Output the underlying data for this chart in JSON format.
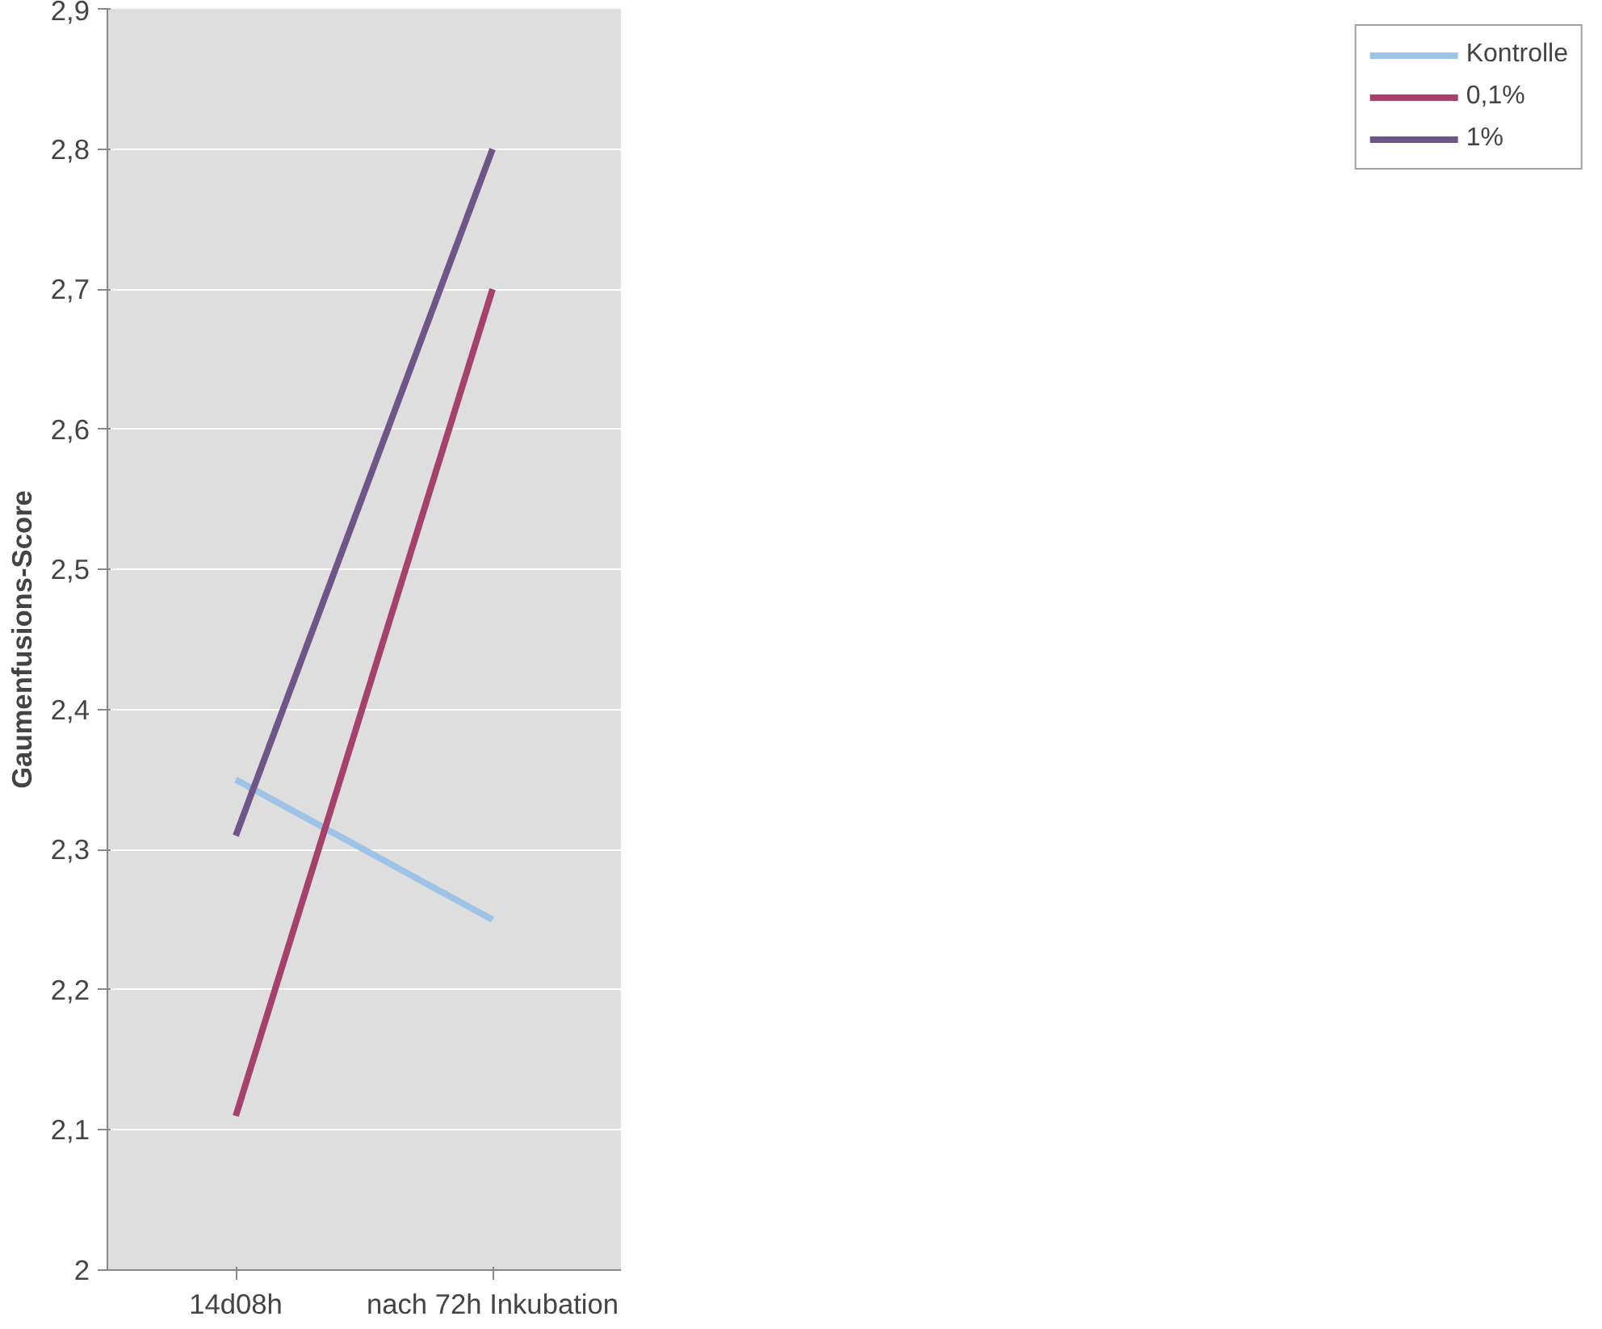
{
  "chart_data": {
    "type": "line",
    "ylabel": "Gaumenfusions-Score",
    "categories": [
      "14d08h",
      "nach 72h Inkubation"
    ],
    "series": [
      {
        "name": "Kontrolle",
        "color": "#9dc3e6",
        "values": [
          2.35,
          2.25
        ]
      },
      {
        "name": "0,1%",
        "color": "#a5426b",
        "values": [
          2.11,
          2.7
        ]
      },
      {
        "name": "1%",
        "color": "#6f5688",
        "values": [
          2.31,
          2.8
        ]
      }
    ],
    "ylim": [
      2,
      2.9
    ],
    "yticks": [
      2,
      {
        "value": 2.1,
        "label": "2,1"
      },
      {
        "value": 2.2,
        "label": "2,2"
      },
      {
        "value": 2.3,
        "label": "2,3"
      },
      {
        "value": 2.4,
        "label": "2,4"
      },
      {
        "value": 2.5,
        "label": "2,5"
      },
      {
        "value": 2.6,
        "label": "2,6"
      },
      {
        "value": 2.7,
        "label": "2,7"
      },
      {
        "value": 2.8,
        "label": "2,8"
      },
      {
        "value": 2.9,
        "label": "2,9"
      }
    ],
    "grid": "y",
    "legend": "right",
    "marker": "none",
    "line_style": "solid"
  }
}
